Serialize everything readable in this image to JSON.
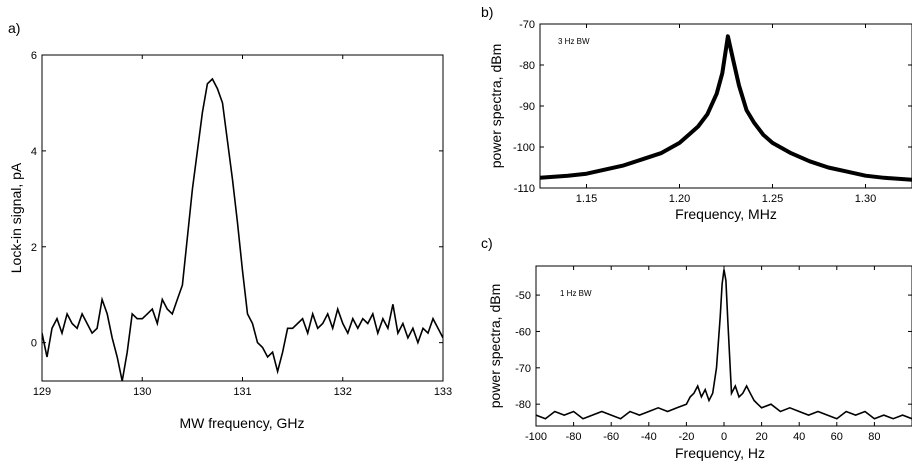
{
  "chart_data": [
    {
      "panel_label": "a)",
      "type": "line",
      "xlabel": "MW frequency, GHz",
      "ylabel": "Lock-in signal, pA",
      "xlim": [
        129,
        133
      ],
      "ylim": [
        -0.8,
        6
      ],
      "x_ticks": [
        129,
        130,
        131,
        132,
        133
      ],
      "y_ticks": [
        0,
        2,
        4,
        6
      ],
      "series": [
        {
          "x": [
            129.0,
            129.05,
            129.1,
            129.15,
            129.2,
            129.25,
            129.3,
            129.35,
            129.4,
            129.45,
            129.5,
            129.55,
            129.6,
            129.65,
            129.7,
            129.75,
            129.8,
            129.85,
            129.9,
            129.95,
            130.0,
            130.05,
            130.1,
            130.15,
            130.2,
            130.25,
            130.3,
            130.35,
            130.4,
            130.45,
            130.5,
            130.55,
            130.6,
            130.65,
            130.7,
            130.75,
            130.8,
            130.85,
            130.9,
            130.95,
            131.0,
            131.05,
            131.1,
            131.15,
            131.2,
            131.25,
            131.3,
            131.35,
            131.4,
            131.45,
            131.5,
            131.55,
            131.6,
            131.65,
            131.7,
            131.75,
            131.8,
            131.85,
            131.9,
            131.95,
            132.0,
            132.05,
            132.1,
            132.15,
            132.2,
            132.25,
            132.3,
            132.35,
            132.4,
            132.45,
            132.5,
            132.55,
            132.6,
            132.65,
            132.7,
            132.75,
            132.8,
            132.85,
            132.9,
            132.95,
            133.0
          ],
          "y": [
            0.2,
            -0.3,
            0.3,
            0.5,
            0.2,
            0.6,
            0.4,
            0.3,
            0.6,
            0.4,
            0.2,
            0.3,
            0.9,
            0.6,
            0.1,
            -0.3,
            -0.8,
            -0.2,
            0.6,
            0.5,
            0.5,
            0.6,
            0.7,
            0.4,
            0.9,
            0.7,
            0.6,
            0.9,
            1.2,
            2.2,
            3.2,
            4.0,
            4.8,
            5.4,
            5.5,
            5.3,
            5.0,
            4.2,
            3.4,
            2.5,
            1.5,
            0.6,
            0.4,
            0.0,
            -0.1,
            -0.3,
            -0.2,
            -0.6,
            -0.2,
            0.3,
            0.3,
            0.4,
            0.5,
            0.2,
            0.6,
            0.3,
            0.4,
            0.6,
            0.3,
            0.7,
            0.4,
            0.2,
            0.5,
            0.3,
            0.5,
            0.4,
            0.6,
            0.2,
            0.5,
            0.3,
            0.8,
            0.2,
            0.4,
            0.1,
            0.3,
            0.0,
            0.3,
            0.2,
            0.5,
            0.3,
            0.1
          ]
        }
      ]
    },
    {
      "panel_label": "b)",
      "type": "scatter",
      "annotation": "3 Hz BW",
      "xlabel": "Frequency, MHz",
      "ylabel": "power spectra, dBm",
      "xlim": [
        1.125,
        1.325
      ],
      "ylim": [
        -110,
        -70
      ],
      "x_ticks": [
        1.15,
        1.2,
        1.25,
        1.3
      ],
      "y_ticks": [
        -110,
        -100,
        -90,
        -80,
        -70
      ],
      "series": [
        {
          "x": [
            1.125,
            1.14,
            1.15,
            1.16,
            1.17,
            1.18,
            1.19,
            1.2,
            1.205,
            1.21,
            1.215,
            1.22,
            1.223,
            1.226,
            1.229,
            1.232,
            1.236,
            1.24,
            1.245,
            1.25,
            1.26,
            1.27,
            1.28,
            1.29,
            1.3,
            1.31,
            1.325
          ],
          "y": [
            -107.5,
            -107,
            -106.5,
            -105.5,
            -104.5,
            -103,
            -101.5,
            -99,
            -97,
            -95,
            -92,
            -87,
            -82,
            -73,
            -79,
            -85,
            -91,
            -94,
            -97,
            -99,
            -101.5,
            -103.5,
            -105,
            -106,
            -107,
            -107.5,
            -108
          ]
        }
      ]
    },
    {
      "panel_label": "c)",
      "type": "line",
      "annotation": "1 Hz BW",
      "xlabel": "Frequency, Hz",
      "ylabel": "power spectra, dBm",
      "xlim": [
        -100,
        100
      ],
      "ylim": [
        -86,
        -42
      ],
      "x_ticks": [
        -100,
        -80,
        -60,
        -40,
        -20,
        0,
        20,
        40,
        60,
        80
      ],
      "y_ticks": [
        -80,
        -70,
        -60,
        -50
      ],
      "series": [
        {
          "x": [
            -100,
            -95,
            -90,
            -85,
            -80,
            -75,
            -70,
            -65,
            -60,
            -55,
            -50,
            -45,
            -40,
            -35,
            -30,
            -25,
            -20,
            -18,
            -16,
            -14,
            -12,
            -10,
            -8,
            -6,
            -4,
            -2,
            -1,
            0,
            1,
            2,
            4,
            6,
            8,
            10,
            12,
            14,
            16,
            18,
            20,
            25,
            30,
            35,
            40,
            45,
            50,
            55,
            60,
            65,
            70,
            75,
            80,
            85,
            90,
            95,
            100
          ],
          "y": [
            -83,
            -84,
            -82,
            -83,
            -82,
            -84,
            -83,
            -82,
            -83,
            -84,
            -82,
            -83,
            -82,
            -81,
            -82,
            -81,
            -80,
            -78,
            -77,
            -75,
            -78,
            -76,
            -79,
            -77,
            -70,
            -56,
            -47,
            -43,
            -46,
            -57,
            -77,
            -75,
            -78,
            -77,
            -75,
            -77,
            -79,
            -80,
            -81,
            -80,
            -82,
            -81,
            -82,
            -83,
            -82,
            -83,
            -84,
            -82,
            -83,
            -82,
            -84,
            -83,
            -84,
            -83,
            -84
          ]
        }
      ]
    }
  ]
}
